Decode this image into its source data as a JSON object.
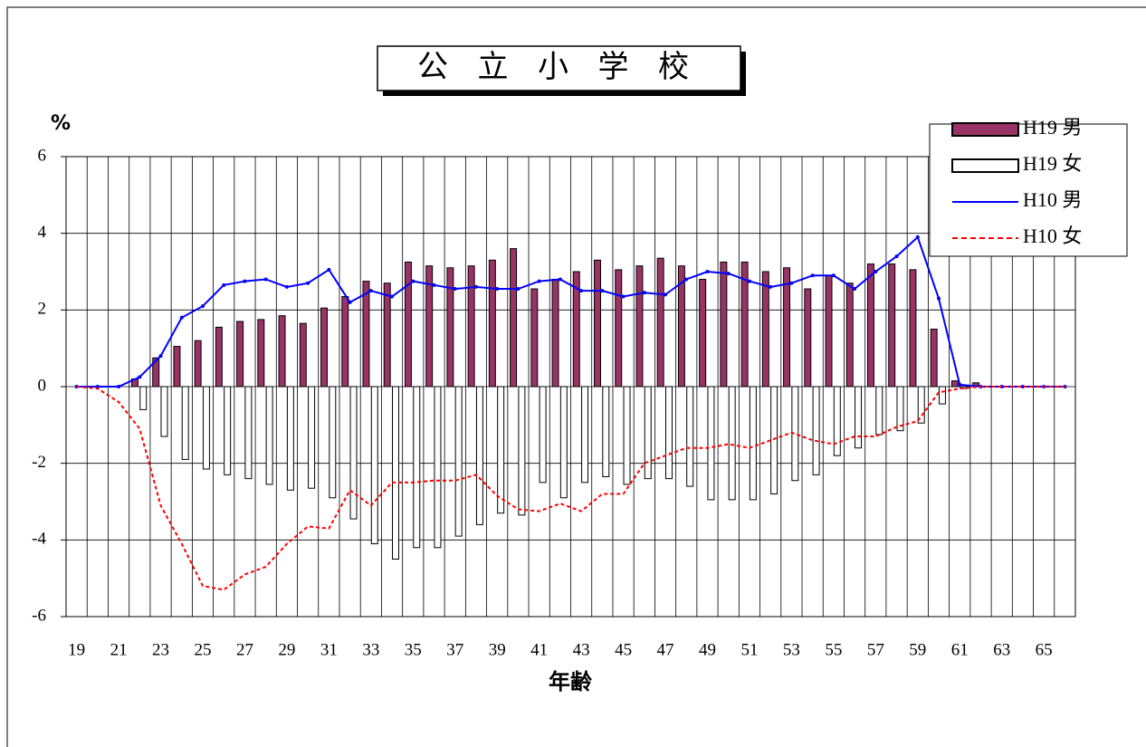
{
  "chart_data": {
    "type": "bar_line",
    "title": "公 立 小 学 校",
    "y_label": "%",
    "x_label": "年齢",
    "categories": [
      "19",
      null,
      "21",
      null,
      "23",
      null,
      "25",
      null,
      "27",
      null,
      "29",
      null,
      "31",
      null,
      "33",
      null,
      "35",
      null,
      "37",
      null,
      "39",
      null,
      "41",
      null,
      "43",
      null,
      "45",
      null,
      "47",
      null,
      "49",
      null,
      "51",
      null,
      "53",
      null,
      "55",
      null,
      "57",
      null,
      "59",
      null,
      "61",
      null,
      "63",
      null,
      "65",
      null
    ],
    "ylim": [
      -6,
      6
    ],
    "yticks": [
      -6,
      -4,
      -2,
      0,
      2,
      4,
      6
    ],
    "grid": true,
    "legend": "upper right",
    "series": [
      {
        "name": "H19 男",
        "kind": "bar",
        "color": "#993366",
        "values": [
          0,
          0,
          0,
          0.2,
          0.75,
          1.05,
          1.2,
          1.55,
          1.7,
          1.75,
          1.85,
          1.65,
          2.05,
          2.35,
          2.75,
          2.7,
          3.25,
          3.15,
          3.1,
          3.15,
          3.3,
          3.6,
          2.55,
          2.8,
          3.0,
          3.3,
          3.05,
          3.15,
          3.35,
          3.15,
          2.8,
          3.25,
          3.25,
          3.0,
          3.1,
          2.55,
          2.9,
          2.7,
          3.2,
          3.2,
          3.05,
          1.5,
          0.15,
          0.1,
          0,
          0,
          0,
          0
        ]
      },
      {
        "name": "H19 女",
        "kind": "bar",
        "color": "#ffffff",
        "values": [
          0,
          0,
          0,
          -0.6,
          -1.3,
          -1.9,
          -2.15,
          -2.3,
          -2.4,
          -2.55,
          -2.7,
          -2.65,
          -2.9,
          -3.45,
          -4.1,
          -4.5,
          -4.2,
          -4.2,
          -3.9,
          -3.6,
          -3.3,
          -3.35,
          -2.5,
          -2.9,
          -2.5,
          -2.35,
          -2.55,
          -2.4,
          -2.4,
          -2.6,
          -2.95,
          -2.95,
          -2.95,
          -2.8,
          -2.45,
          -2.3,
          -1.8,
          -1.6,
          -1.25,
          -1.15,
          -0.95,
          -0.45,
          -0.05,
          0,
          0,
          0,
          0,
          0
        ]
      },
      {
        "name": "H10 男",
        "kind": "line",
        "color": "#0000ff",
        "values": [
          0,
          0,
          0,
          0.25,
          0.8,
          1.8,
          2.1,
          2.65,
          2.75,
          2.8,
          2.6,
          2.7,
          3.05,
          2.2,
          2.5,
          2.35,
          2.75,
          2.65,
          2.55,
          2.6,
          2.55,
          2.55,
          2.75,
          2.8,
          2.5,
          2.5,
          2.35,
          2.45,
          2.4,
          2.8,
          3.0,
          2.95,
          2.75,
          2.6,
          2.7,
          2.9,
          2.9,
          2.55,
          3.0,
          3.4,
          3.9,
          2.3,
          0.05,
          0,
          0,
          0,
          0,
          0
        ]
      },
      {
        "name": "H10 女",
        "kind": "line",
        "dashed": true,
        "color": "#ff0000",
        "values": [
          0,
          -0.05,
          -0.4,
          -1.1,
          -3.1,
          -4.1,
          -5.2,
          -5.3,
          -4.9,
          -4.7,
          -4.1,
          -3.65,
          -3.7,
          -2.7,
          -3.1,
          -2.5,
          -2.5,
          -2.45,
          -2.45,
          -2.3,
          -2.85,
          -3.2,
          -3.25,
          -3.05,
          -3.25,
          -2.8,
          -2.8,
          -2.0,
          -1.8,
          -1.6,
          -1.6,
          -1.5,
          -1.6,
          -1.4,
          -1.2,
          -1.4,
          -1.5,
          -1.3,
          -1.3,
          -1.05,
          -0.9,
          -0.15,
          -0.05,
          0,
          0,
          0,
          0,
          0
        ]
      }
    ]
  }
}
